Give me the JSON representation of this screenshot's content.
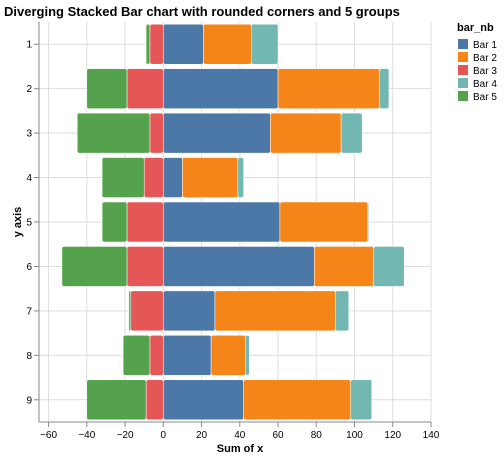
{
  "chart_data": {
    "type": "bar",
    "orientation": "horizontal",
    "stacked": "diverging",
    "title": "Diverging Stacked Bar chart with rounded corners and 5 groups",
    "xlabel": "Sum of x",
    "ylabel": "y axis",
    "xlim": [
      -65,
      140
    ],
    "xticks": [
      -60,
      -40,
      -20,
      0,
      20,
      40,
      60,
      80,
      100,
      120,
      140
    ],
    "categories": [
      "1",
      "2",
      "3",
      "4",
      "5",
      "6",
      "7",
      "8",
      "9"
    ],
    "legend_title": "bar_nb",
    "legend_position": "top-right",
    "grid": true,
    "series": [
      {
        "name": "Bar 1",
        "color": "#4c78a8",
        "values": [
          21,
          60,
          56,
          10,
          61,
          79,
          27,
          25,
          42
        ]
      },
      {
        "name": "Bar 2",
        "color": "#f58518",
        "values": [
          25,
          53,
          37,
          29,
          46,
          31,
          63,
          18,
          56
        ]
      },
      {
        "name": "Bar 3",
        "color": "#e45756",
        "values": [
          -7,
          -19,
          -7,
          -10,
          -19,
          -19,
          -17,
          -7,
          -9
        ]
      },
      {
        "name": "Bar 4",
        "color": "#72b7b2",
        "values": [
          14,
          5,
          11,
          3,
          0.5,
          16,
          7,
          2,
          11
        ]
      },
      {
        "name": "Bar 5",
        "color": "#54a24b",
        "values": [
          -2,
          -21,
          -38,
          -22,
          -13,
          -34,
          -1,
          -14,
          -31
        ]
      }
    ]
  }
}
